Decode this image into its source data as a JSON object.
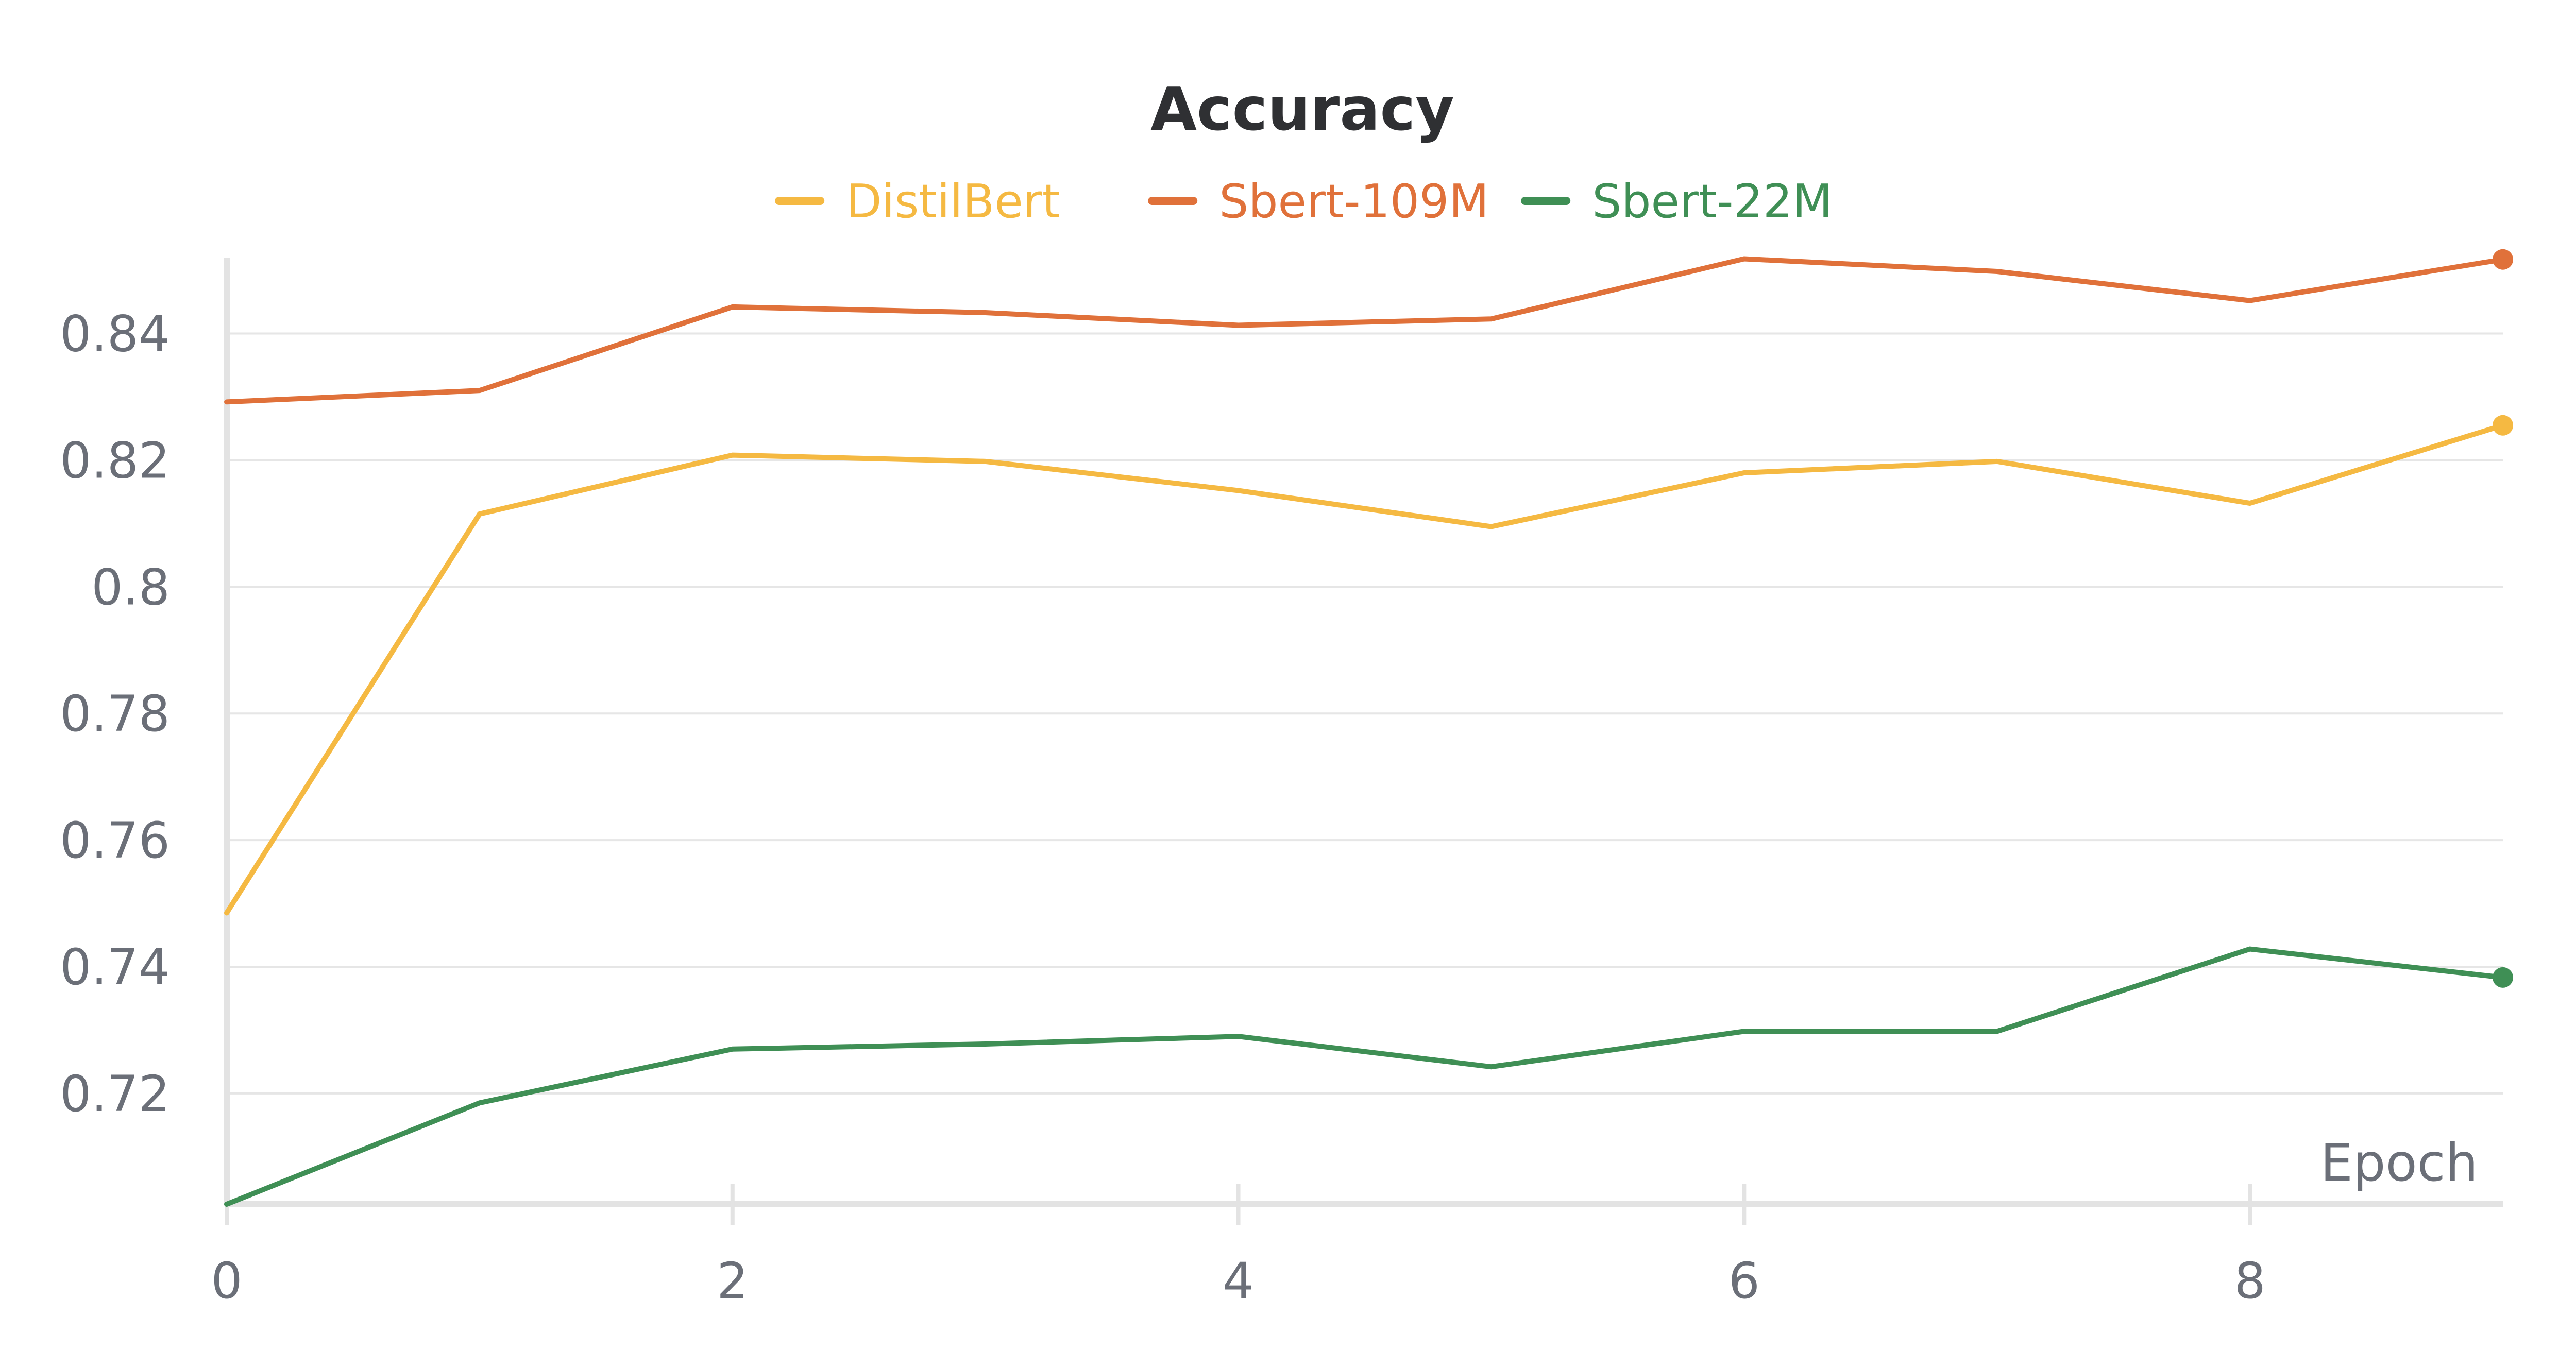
{
  "chart_data": {
    "type": "line",
    "title": "Accuracy",
    "xlabel": "Epoch",
    "ylabel": "",
    "x": [
      0,
      1,
      2,
      3,
      4,
      5,
      6,
      7,
      8,
      9
    ],
    "xlim": [
      0,
      9
    ],
    "ylim": [
      0.7025,
      0.852
    ],
    "x_ticks": [
      0,
      2,
      4,
      6,
      8
    ],
    "x_tick_labels": [
      "0",
      "2",
      "4",
      "6",
      "8"
    ],
    "y_ticks": [
      0.72,
      0.74,
      0.76,
      0.78,
      0.8,
      0.82,
      0.84
    ],
    "y_tick_labels": [
      "0.72",
      "0.74",
      "0.76",
      "0.78",
      "0.8",
      "0.82",
      "0.84"
    ],
    "grid": "horizontal",
    "legend_position": "top-center",
    "series": [
      {
        "name": "DistilBert",
        "color": "#f5b942",
        "values": [
          0.7485,
          0.8115,
          0.8208,
          0.8198,
          0.8152,
          0.8095,
          0.818,
          0.8198,
          0.8132,
          0.8255
        ]
      },
      {
        "name": "Sbert-109M",
        "color": "#e0713a",
        "values": [
          0.8292,
          0.831,
          0.8442,
          0.8433,
          0.8413,
          0.8423,
          0.8518,
          0.8498,
          0.8452,
          0.8517
        ]
      },
      {
        "name": "Sbert-22M",
        "color": "#3f8f55",
        "values": [
          0.7025,
          0.7185,
          0.727,
          0.7278,
          0.729,
          0.7242,
          0.7298,
          0.7298,
          0.7428,
          0.7383
        ]
      }
    ]
  }
}
